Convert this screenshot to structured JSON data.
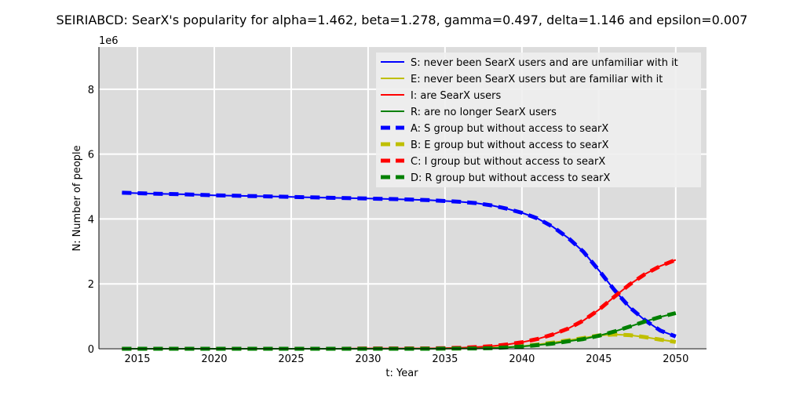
{
  "chart_data": {
    "type": "line",
    "title": "SEIRIABCD: SearX's popularity for alpha=1.462, beta=1.278, gamma=0.497, delta=1.146 and epsilon=0.007",
    "xlabel": "t: Year",
    "ylabel": "N: Number of people",
    "y_offset_label": "1e6",
    "xlim": [
      2012.5,
      2052
    ],
    "ylim": [
      0,
      9.3
    ],
    "x_ticks": [
      2015,
      2020,
      2025,
      2030,
      2035,
      2040,
      2045,
      2050
    ],
    "y_ticks": [
      0,
      2,
      4,
      6,
      8
    ],
    "grid": true,
    "legend_position": "top-right",
    "x": [
      2014,
      2016,
      2018,
      2020,
      2022,
      2024,
      2026,
      2028,
      2030,
      2032,
      2034,
      2036,
      2037,
      2038,
      2039,
      2040,
      2041,
      2042,
      2043,
      2044,
      2045,
      2046,
      2047,
      2048,
      2049,
      2050
    ],
    "series": [
      {
        "name": "S: never been SearX users and are unfamiliar with it",
        "color": "#0000ff",
        "style": "solid",
        "values": [
          4.81,
          4.78,
          4.76,
          4.73,
          4.71,
          4.69,
          4.67,
          4.65,
          4.63,
          4.61,
          4.58,
          4.53,
          4.49,
          4.42,
          4.32,
          4.19,
          4.02,
          3.76,
          3.42,
          2.99,
          2.42,
          1.82,
          1.28,
          0.88,
          0.56,
          0.38
        ]
      },
      {
        "name": "E: never been SearX users but are familiar with it",
        "color": "#bfbf00",
        "style": "solid",
        "values": [
          0.0,
          0.0,
          0.0,
          0.0,
          0.0,
          0.0,
          0.0,
          0.0,
          0.0,
          0.0,
          0.01,
          0.01,
          0.02,
          0.03,
          0.05,
          0.08,
          0.13,
          0.19,
          0.26,
          0.33,
          0.41,
          0.44,
          0.42,
          0.36,
          0.28,
          0.21
        ]
      },
      {
        "name": "I: are SearX users",
        "color": "#ff0000",
        "style": "solid",
        "values": [
          0.0,
          0.0,
          0.0,
          0.0,
          0.0,
          0.0,
          0.0,
          0.0,
          0.01,
          0.01,
          0.01,
          0.03,
          0.05,
          0.08,
          0.13,
          0.2,
          0.3,
          0.44,
          0.62,
          0.87,
          1.2,
          1.6,
          1.98,
          2.3,
          2.55,
          2.74
        ]
      },
      {
        "name": "R: are no longer SearX users",
        "color": "#008000",
        "style": "solid",
        "values": [
          0.0,
          0.0,
          0.0,
          0.0,
          0.0,
          0.0,
          0.0,
          0.0,
          0.0,
          0.0,
          0.0,
          0.01,
          0.01,
          0.02,
          0.04,
          0.07,
          0.11,
          0.16,
          0.23,
          0.3,
          0.4,
          0.53,
          0.68,
          0.84,
          0.98,
          1.1
        ]
      },
      {
        "name": "A: S group but without access to searX",
        "color": "#0000ff",
        "style": "dashed",
        "values": [
          4.81,
          4.78,
          4.76,
          4.73,
          4.71,
          4.69,
          4.67,
          4.65,
          4.63,
          4.61,
          4.58,
          4.53,
          4.49,
          4.42,
          4.32,
          4.19,
          4.02,
          3.76,
          3.42,
          2.99,
          2.42,
          1.82,
          1.28,
          0.88,
          0.56,
          0.38
        ]
      },
      {
        "name": "B: E group but without access to searX",
        "color": "#bfbf00",
        "style": "dashed",
        "values": [
          0.0,
          0.0,
          0.0,
          0.0,
          0.0,
          0.0,
          0.0,
          0.0,
          0.0,
          0.0,
          0.01,
          0.01,
          0.02,
          0.03,
          0.05,
          0.08,
          0.13,
          0.19,
          0.26,
          0.33,
          0.41,
          0.44,
          0.42,
          0.36,
          0.28,
          0.21
        ]
      },
      {
        "name": "C: I group but without access to searX",
        "color": "#ff0000",
        "style": "dashed",
        "values": [
          0.0,
          0.0,
          0.0,
          0.0,
          0.0,
          0.0,
          0.0,
          0.0,
          0.01,
          0.01,
          0.01,
          0.03,
          0.05,
          0.08,
          0.13,
          0.2,
          0.3,
          0.44,
          0.62,
          0.87,
          1.2,
          1.6,
          1.98,
          2.3,
          2.55,
          2.74
        ]
      },
      {
        "name": "D: R group but without access to searX",
        "color": "#008000",
        "style": "dashed",
        "values": [
          0.0,
          0.0,
          0.0,
          0.0,
          0.0,
          0.0,
          0.0,
          0.0,
          0.0,
          0.0,
          0.0,
          0.01,
          0.01,
          0.02,
          0.04,
          0.07,
          0.11,
          0.16,
          0.23,
          0.3,
          0.4,
          0.53,
          0.68,
          0.84,
          0.98,
          1.1
        ]
      }
    ]
  }
}
